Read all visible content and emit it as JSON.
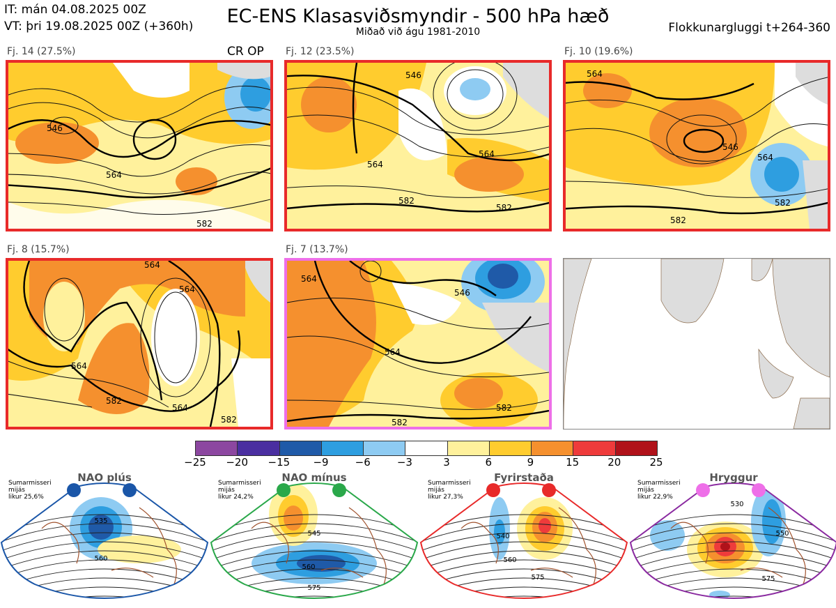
{
  "header": {
    "it": "IT: mán 04.08.2025 00Z",
    "vt": "VT: þri 19.08.2025 00Z  (+360h)",
    "title": "EC-ENS Klasasviðsmyndir - 500 hPa hæð",
    "subtitle": "Miðað við águ 1981-2010",
    "window": "Flokkunargluggi t+264-360"
  },
  "panels": [
    {
      "label": "Fj. 14 (27.5%)",
      "extra": "CR OP",
      "border": "#e82a2a",
      "contours": [
        "546",
        "564",
        "582"
      ]
    },
    {
      "label": "Fj. 12 (23.5%)",
      "extra": "",
      "border": "#e82a2a",
      "contours": [
        "546",
        "564",
        "564",
        "582",
        "582"
      ]
    },
    {
      "label": "Fj. 10 (19.6%)",
      "extra": "",
      "border": "#e82a2a",
      "contours": [
        "564",
        "546",
        "564",
        "582",
        "582"
      ]
    },
    {
      "label": "Fj. 8 (15.7%)",
      "extra": "",
      "border": "#e82a2a",
      "contours": [
        "564",
        "564",
        "564",
        "564",
        "582",
        "582"
      ]
    },
    {
      "label": "Fj. 7 (13.7%)",
      "extra": "",
      "border": "#ee6fe8",
      "contours": [
        "564",
        "546",
        "564",
        "582",
        "582"
      ]
    }
  ],
  "colorbar": {
    "colors": [
      "#8c47a0",
      "#4a2fa0",
      "#1f5aa8",
      "#2e9ee0",
      "#8ecbf2",
      "#ffffff",
      "#fff19c",
      "#ffcc2e",
      "#f5902e",
      "#ee3b3b",
      "#b0121a"
    ],
    "labels": [
      "−25",
      "−20",
      "−15",
      "−9",
      "−6",
      "−3",
      "3",
      "6",
      "9",
      "15",
      "20",
      "25"
    ]
  },
  "regimes": [
    {
      "title": "NAO plús",
      "note": "Sumarmisseri\nmijás\nlikur 25,6%",
      "color": "#1a56a8",
      "dot": "#1a56a8",
      "contours": [
        "535",
        "560"
      ]
    },
    {
      "title": "NAO mínus",
      "note": "Sumarmisseri\nmijás\nlikur 24,2%",
      "color": "#2aa84a",
      "dot": "#2aa84a",
      "contours": [
        "545",
        "560",
        "575"
      ]
    },
    {
      "title": "Fyrirstaða",
      "note": "Sumarmisseri\nmijás\nlikur 27,3%",
      "color": "#e82a2a",
      "dot": "#e82a2a",
      "contours": [
        "540",
        "560",
        "575"
      ]
    },
    {
      "title": "Hryggur",
      "note": "Sumarmisseri\nmijás\nlikur 22,9%",
      "color": "#8a2aa0",
      "dot": "#ee6fe8",
      "contours": [
        "530",
        "550",
        "575"
      ]
    }
  ]
}
